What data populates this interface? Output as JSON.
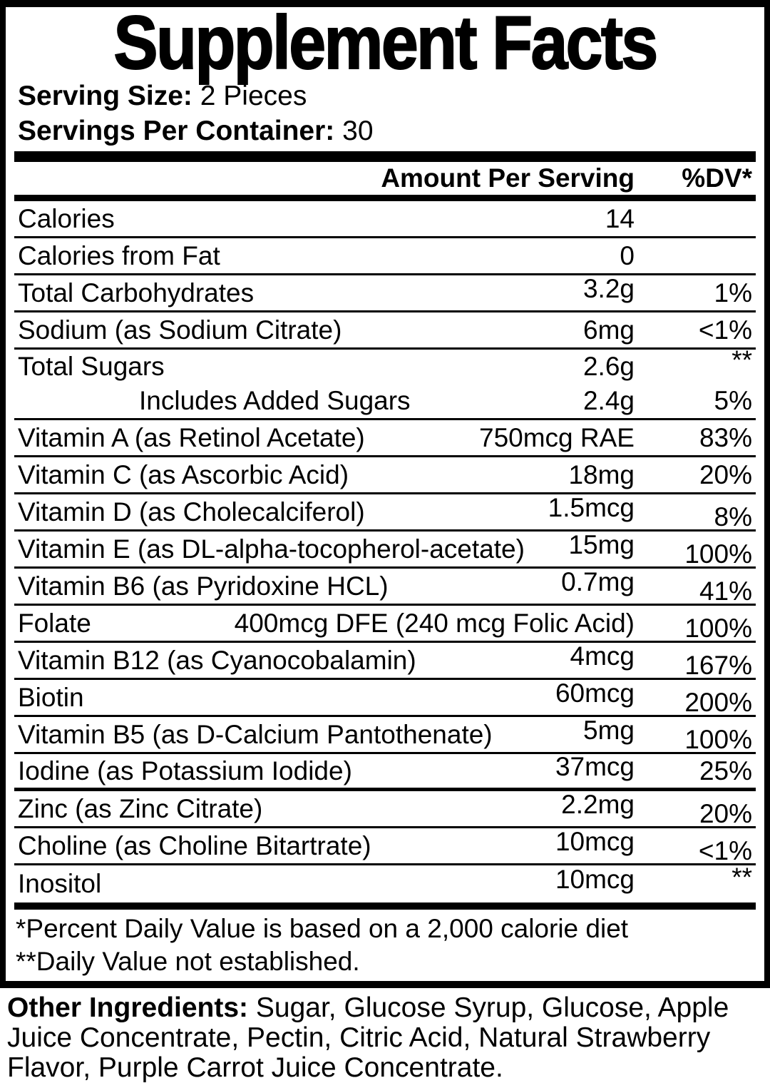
{
  "panel": {
    "title": "Supplement Facts",
    "serving_size": {
      "label": "Serving Size:",
      "value": "2 Pieces"
    },
    "servings_per_container": {
      "label": "Servings Per Container:",
      "value": "30"
    },
    "columns": {
      "amount": "Amount Per Serving",
      "dv": "%DV*"
    },
    "rows": [
      {
        "label": "Calories",
        "amount": "14",
        "dv": ""
      },
      {
        "label": "Calories from Fat",
        "amount": "0",
        "dv": ""
      },
      {
        "label": "Total Carbohydrates",
        "amount": "3.2g",
        "dv": "1%"
      },
      {
        "label": "Sodium (as Sodium Citrate)",
        "amount": "6mg",
        "dv": "<1%"
      },
      {
        "label": "Total Sugars",
        "amount": "2.6g",
        "dv": "**",
        "sub": {
          "label": "Includes Added Sugars",
          "amount": "2.4g",
          "dv": "5%"
        }
      },
      {
        "label": "Vitamin A (as Retinol Acetate)",
        "amount": "750mcg RAE",
        "dv": "83%"
      },
      {
        "label": "Vitamin C (as Ascorbic Acid)",
        "amount": "18mg",
        "dv": "20%"
      },
      {
        "label": "Vitamin D (as Cholecalciferol)",
        "amount": "1.5mcg",
        "dv": "8%"
      },
      {
        "label": "Vitamin E (as DL-alpha-tocopherol-acetate)",
        "amount": "15mg",
        "dv": "100%"
      },
      {
        "label": "Vitamin B6 (as Pyridoxine HCL)",
        "amount": "0.7mg",
        "dv": "41%"
      },
      {
        "label": "Folate",
        "amount": "400mcg DFE (240 mcg Folic Acid)",
        "dv": "100%"
      },
      {
        "label": "Vitamin B12 (as Cyanocobalamin)",
        "amount": "4mcg",
        "dv": "167%"
      },
      {
        "label": "Biotin",
        "amount": "60mcg",
        "dv": "200%"
      },
      {
        "label": "Vitamin B5 (as D-Calcium Pantothenate)",
        "amount": "5mg",
        "dv": "100%"
      },
      {
        "label": "Iodine (as Potassium Iodide)",
        "amount": "37mcg",
        "dv": "25%"
      },
      {
        "label": "Zinc (as Zinc Citrate)",
        "amount": "2.2mg",
        "dv": "20%"
      },
      {
        "label": "Choline (as Choline Bitartrate)",
        "amount": "10mcg",
        "dv": "<1%"
      },
      {
        "label": "Inositol",
        "amount": "10mcg",
        "dv": "**"
      }
    ],
    "footnotes": [
      "*Percent Daily Value is based on a 2,000 calorie diet",
      "**Daily Value not established."
    ]
  },
  "other_ingredients": {
    "label": "Other Ingredients:",
    "text": "Sugar, Glucose Syrup, Glucose, Apple Juice Concentrate, Pectin, Citric Acid, Natural Strawberry Flavor, Purple Carrot Juice Concentrate."
  },
  "colors": {
    "text": "#000000",
    "background": "#ffffff"
  }
}
